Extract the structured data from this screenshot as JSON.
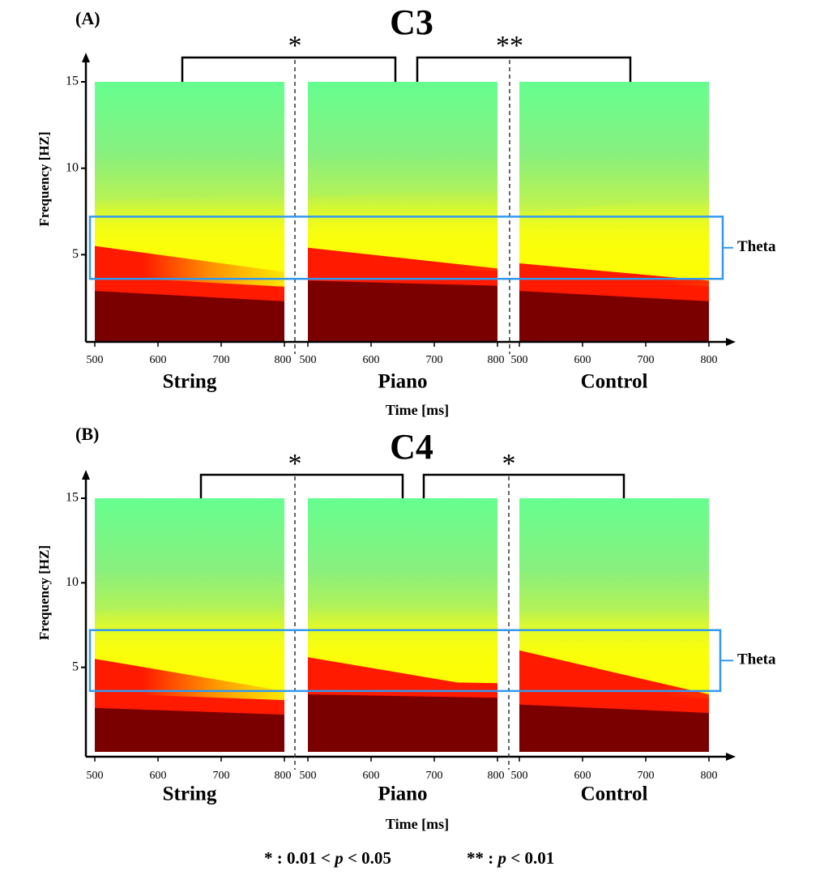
{
  "colors": {
    "scale": [
      "#7a0000",
      "#ff1a00",
      "#ffff00",
      "#66ff99"
    ],
    "theta_box": "#3399ee",
    "axis": "#000000"
  },
  "chart_data": [
    {
      "type": "heatmap",
      "panel_label": "(A)",
      "title": "C3",
      "xlabel": "Time [ms]",
      "ylabel": "Frequency [HZ]",
      "x_ticks": [
        500,
        600,
        700,
        800
      ],
      "y_ticks": [
        5,
        10,
        15
      ],
      "xlim": [
        500,
        800
      ],
      "ylim": [
        0,
        15
      ],
      "conditions": [
        "String",
        "Piano",
        "Control"
      ],
      "band_label": "Theta",
      "band_hz": [
        3.5,
        7.2
      ],
      "comparisons": [
        {
          "pair": [
            "String",
            "Piano"
          ],
          "marker": "*"
        },
        {
          "pair": [
            "Piano",
            "Control"
          ],
          "marker": "**"
        }
      ],
      "power_boundaries": [
        {
          "condition": "String",
          "dark_red_top_hz": [
            2.9,
            2.3
          ],
          "red_top_hz": [
            5.5,
            4.0
          ],
          "yellow_top_hz": [
            7.2,
            7.6
          ]
        },
        {
          "condition": "Piano",
          "dark_red_top_hz": [
            3.5,
            3.2
          ],
          "red_top_hz": [
            5.4,
            4.2
          ],
          "yellow_top_hz": [
            7.4,
            7.9
          ]
        },
        {
          "condition": "Control",
          "dark_red_top_hz": [
            2.9,
            2.3
          ],
          "red_top_hz": [
            4.5,
            3.5
          ],
          "yellow_top_hz": [
            6.5,
            7.4
          ]
        }
      ]
    },
    {
      "type": "heatmap",
      "panel_label": "(B)",
      "title": "C4",
      "xlabel": "Time [ms]",
      "ylabel": "Frequency [HZ]",
      "x_ticks": [
        500,
        600,
        700,
        800
      ],
      "y_ticks": [
        5,
        10,
        15
      ],
      "xlim": [
        500,
        800
      ],
      "ylim": [
        0,
        15
      ],
      "conditions": [
        "String",
        "Piano",
        "Control"
      ],
      "band_label": "Theta",
      "band_hz": [
        3.5,
        7.2
      ],
      "comparisons": [
        {
          "pair": [
            "String",
            "Piano"
          ],
          "marker": "*"
        },
        {
          "pair": [
            "Piano",
            "Control"
          ],
          "marker": "*"
        }
      ],
      "power_boundaries": [
        {
          "condition": "String",
          "dark_red_top_hz": [
            2.6,
            2.2
          ],
          "red_top_hz": [
            5.5,
            3.6
          ],
          "yellow_top_hz": [
            7.4,
            7.8
          ]
        },
        {
          "condition": "Piano",
          "dark_red_top_hz": [
            3.4,
            3.2
          ],
          "red_top_hz": [
            5.6,
            3.7
          ],
          "yellow_top_hz": [
            7.6,
            7.8
          ]
        },
        {
          "condition": "Control",
          "dark_red_top_hz": [
            2.8,
            2.3
          ],
          "red_top_hz": [
            6.0,
            3.4
          ],
          "yellow_top_hz": [
            7.3,
            7.6
          ]
        }
      ]
    }
  ],
  "footnote": {
    "single_marker": "*",
    "single_prefix": ": 0.01 <",
    "p_symbol": "p",
    "single_suffix": "< 0.05",
    "double_marker": "**",
    "double_prefix": ":",
    "double_suffix": "< 0.01"
  }
}
